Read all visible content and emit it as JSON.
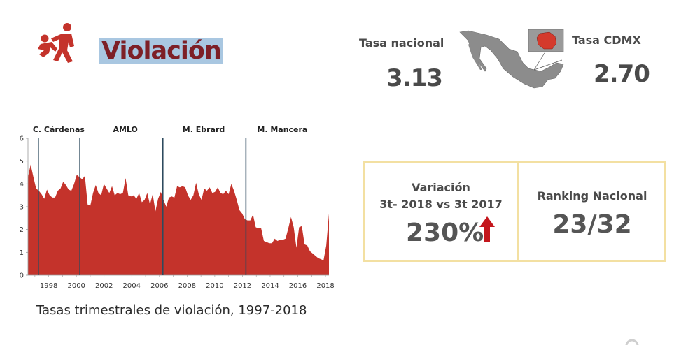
{
  "header": {
    "title": "Violación",
    "icon": "assault-figures-icon"
  },
  "rates": {
    "national_label": "Tasa nacional",
    "national_value": "3.13",
    "cdmx_label": "Tasa CDMX",
    "cdmx_value": "2.70",
    "map_icon": "mexico-map-icon"
  },
  "stats": {
    "variation_line1": "Variación",
    "variation_line2": "3t- 2018 vs 3t 2017",
    "variation_value": "230%",
    "variation_icon": "up-arrow-icon",
    "ranking_label": "Ranking Nacional",
    "ranking_value": "23/32"
  },
  "colors": {
    "area_fill": "#c4332b",
    "divider_line": "#2d4a5e",
    "title_text": "#7d1f26",
    "title_highlight": "#a9c7e1",
    "box_border": "#f3e0a2",
    "arrow": "#c4161c"
  },
  "chart_data": {
    "type": "area",
    "caption": "Tasas trimestrales de violación, 1997-2018",
    "x_start": 1997.0,
    "x_end": 2018.75,
    "ylim": [
      0,
      6
    ],
    "y_ticks": [
      0,
      1,
      2,
      3,
      4,
      5,
      6
    ],
    "x_ticks": [
      1998,
      2000,
      2002,
      2004,
      2006,
      2008,
      2010,
      2012,
      2014,
      2016,
      2018
    ],
    "grid": false,
    "administrations": [
      {
        "name": "C. Cárdenas",
        "start": 1997.75
      },
      {
        "name": "AMLO",
        "start": 2000.75
      },
      {
        "name": "M. Ebrard",
        "start": 2006.75
      },
      {
        "name": "M. Mancera",
        "start": 2012.75
      }
    ],
    "values": [
      4.3,
      4.85,
      4.3,
      3.8,
      3.7,
      3.55,
      3.35,
      3.75,
      3.5,
      3.4,
      3.4,
      3.7,
      3.8,
      4.1,
      3.95,
      3.75,
      3.7,
      4.0,
      4.4,
      4.3,
      4.2,
      4.35,
      3.1,
      3.05,
      3.6,
      3.95,
      3.6,
      3.5,
      4.0,
      3.8,
      3.6,
      3.9,
      3.5,
      3.6,
      3.55,
      3.6,
      4.25,
      3.5,
      3.45,
      3.5,
      3.35,
      3.6,
      3.2,
      3.3,
      3.6,
      3.1,
      3.55,
      2.8,
      3.35,
      3.65,
      3.3,
      3.0,
      3.4,
      3.45,
      3.4,
      3.9,
      3.85,
      3.9,
      3.85,
      3.5,
      3.3,
      3.5,
      4.05,
      3.55,
      3.3,
      3.8,
      3.7,
      3.85,
      3.6,
      3.65,
      3.85,
      3.6,
      3.55,
      3.7,
      3.55,
      4.0,
      3.7,
      3.3,
      2.85,
      2.7,
      2.45,
      2.4,
      2.4,
      2.65,
      2.1,
      2.05,
      2.05,
      1.5,
      1.45,
      1.4,
      1.4,
      1.6,
      1.5,
      1.55,
      1.55,
      1.6,
      2.05,
      2.55,
      2.1,
      1.2,
      2.1,
      2.15,
      1.35,
      1.3,
      1.05,
      0.95,
      0.85,
      0.75,
      0.7,
      0.65,
      1.3,
      2.7
    ]
  },
  "corner": {
    "icon": "partial-logo-icon"
  }
}
